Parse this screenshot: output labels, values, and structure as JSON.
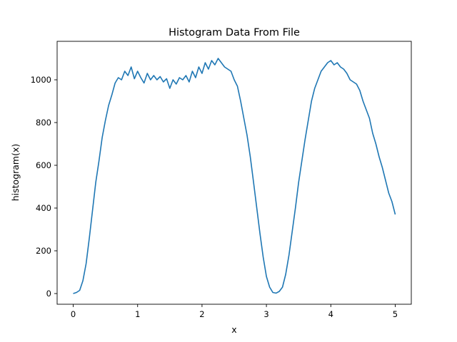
{
  "chart_data": {
    "type": "line",
    "title": "Histogram Data From File",
    "xlabel": "x",
    "ylabel": "histogram(x)",
    "xlim": [
      -0.25,
      5.25
    ],
    "ylim": [
      -50,
      1180
    ],
    "xticks": [
      0,
      1,
      2,
      3,
      4,
      5
    ],
    "yticks": [
      0,
      200,
      400,
      600,
      800,
      1000
    ],
    "grid": false,
    "legend": "none",
    "series": [
      {
        "color": "#1f77b4",
        "x": [
          0.0,
          0.05,
          0.1,
          0.15,
          0.2,
          0.25,
          0.3,
          0.35,
          0.4,
          0.45,
          0.5,
          0.55,
          0.6,
          0.65,
          0.7,
          0.75,
          0.8,
          0.85,
          0.9,
          0.95,
          1.0,
          1.05,
          1.1,
          1.15,
          1.2,
          1.25,
          1.3,
          1.35,
          1.4,
          1.45,
          1.5,
          1.55,
          1.6,
          1.65,
          1.7,
          1.75,
          1.8,
          1.85,
          1.9,
          1.95,
          2.0,
          2.05,
          2.1,
          2.15,
          2.2,
          2.25,
          2.3,
          2.35,
          2.4,
          2.45,
          2.5,
          2.55,
          2.6,
          2.65,
          2.7,
          2.75,
          2.8,
          2.85,
          2.9,
          2.95,
          3.0,
          3.05,
          3.1,
          3.15,
          3.2,
          3.25,
          3.3,
          3.35,
          3.4,
          3.45,
          3.5,
          3.55,
          3.6,
          3.65,
          3.7,
          3.75,
          3.8,
          3.85,
          3.9,
          3.95,
          4.0,
          4.05,
          4.1,
          4.15,
          4.2,
          4.25,
          4.3,
          4.35,
          4.4,
          4.45,
          4.5,
          4.55,
          4.6,
          4.65,
          4.7,
          4.75,
          4.8,
          4.85,
          4.9,
          4.95,
          5.0
        ],
        "y": [
          0,
          5,
          15,
          60,
          140,
          260,
          390,
          520,
          620,
          730,
          810,
          880,
          930,
          985,
          1010,
          1000,
          1040,
          1020,
          1060,
          1005,
          1040,
          1010,
          985,
          1030,
          1000,
          1020,
          1000,
          1015,
          990,
          1005,
          960,
          1000,
          980,
          1010,
          1000,
          1020,
          990,
          1040,
          1010,
          1060,
          1030,
          1080,
          1050,
          1090,
          1070,
          1100,
          1080,
          1060,
          1050,
          1040,
          1000,
          970,
          900,
          820,
          740,
          640,
          520,
          400,
          280,
          170,
          80,
          30,
          5,
          2,
          10,
          30,
          90,
          180,
          290,
          400,
          520,
          620,
          720,
          810,
          900,
          960,
          1000,
          1040,
          1060,
          1080,
          1090,
          1070,
          1080,
          1060,
          1050,
          1030,
          1000,
          990,
          980,
          950,
          900,
          860,
          820,
          750,
          700,
          640,
          590,
          530,
          470,
          430,
          370
        ]
      }
    ]
  }
}
